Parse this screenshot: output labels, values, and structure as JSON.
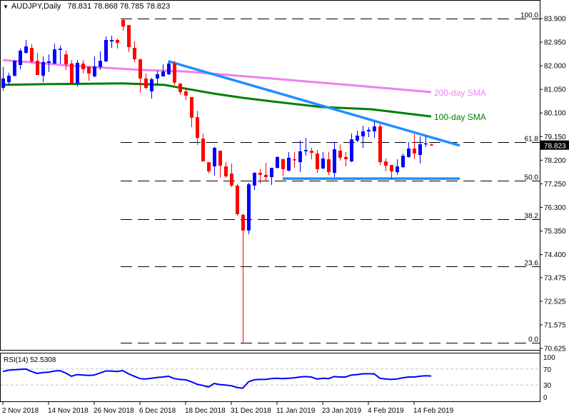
{
  "header": {
    "symbol_timeframe": "AUDJPY,Daily",
    "ohlc_text": "78.831 78.868 78.785 78.823"
  },
  "colors": {
    "bull": "#0000ff",
    "bear": "#ff0000",
    "sma200": "#ee82ee",
    "sma100": "#008000",
    "trendline": "#1e90ff",
    "rsi": "#0000ff"
  },
  "chart_data": {
    "type": "candlestick",
    "title": "AUDJPY,Daily",
    "ylim": [
      70.625,
      83.9
    ],
    "y_ticks": [
      "83.900",
      "82.950",
      "82.000",
      "81.050",
      "80.100",
      "79.150",
      "78.200",
      "77.250",
      "76.300",
      "75.350",
      "74.400",
      "73.475",
      "72.525",
      "71.575",
      "70.625"
    ],
    "current_price": "78.823",
    "x_ticks": [
      {
        "bar": 1,
        "label": "2 Nov 2018"
      },
      {
        "bar": 9,
        "label": "14 Nov 2018"
      },
      {
        "bar": 17,
        "label": "26 Nov 2018"
      },
      {
        "bar": 25,
        "label": "6 Dec 2018"
      },
      {
        "bar": 33,
        "label": "18 Dec 2018"
      },
      {
        "bar": 41,
        "label": "31 Dec 2018"
      },
      {
        "bar": 49,
        "label": "11 Jan 2019"
      },
      {
        "bar": 57,
        "label": "23 Jan 2019"
      },
      {
        "bar": 65,
        "label": "4 Feb 2019"
      },
      {
        "bar": 73,
        "label": "14 Feb 2019"
      }
    ],
    "ohlc": [
      [
        81.11,
        81.95,
        81.0,
        81.49
      ],
      [
        81.34,
        81.72,
        81.23,
        81.6
      ],
      [
        81.6,
        82.23,
        81.57,
        82.2
      ],
      [
        82.03,
        82.69,
        81.86,
        82.61
      ],
      [
        82.52,
        83.04,
        82.49,
        82.78
      ],
      [
        82.72,
        82.87,
        82.12,
        82.18
      ],
      [
        82.2,
        82.52,
        81.63,
        81.63
      ],
      [
        81.6,
        82.38,
        81.34,
        82.15
      ],
      [
        82.12,
        82.46,
        81.75,
        82.18
      ],
      [
        82.09,
        82.89,
        82.06,
        82.66
      ],
      [
        82.64,
        82.81,
        82.09,
        82.69
      ],
      [
        82.46,
        82.61,
        81.83,
        82.06
      ],
      [
        82.09,
        82.23,
        81.29,
        81.29
      ],
      [
        81.29,
        82.23,
        81.17,
        82.12
      ],
      [
        82.09,
        82.23,
        81.69,
        81.86
      ],
      [
        81.95,
        81.97,
        81.4,
        81.69
      ],
      [
        81.57,
        82.38,
        81.54,
        81.97
      ],
      [
        81.95,
        82.58,
        81.83,
        82.2
      ],
      [
        82.18,
        83.18,
        82.15,
        83.04
      ],
      [
        82.98,
        83.21,
        82.72,
        83.04
      ],
      [
        83.04,
        83.1,
        82.69,
        82.92
      ],
      [
        83.84,
        83.87,
        83.41,
        83.58
      ],
      [
        83.64,
        83.64,
        82.55,
        82.75
      ],
      [
        82.72,
        82.98,
        82.15,
        82.26
      ],
      [
        82.26,
        82.29,
        80.91,
        81.49
      ],
      [
        81.49,
        81.69,
        81.06,
        81.11
      ],
      [
        80.97,
        81.52,
        80.68,
        81.46
      ],
      [
        81.49,
        81.8,
        81.23,
        81.66
      ],
      [
        81.57,
        82.06,
        81.57,
        81.77
      ],
      [
        81.66,
        82.2,
        81.63,
        82.09
      ],
      [
        82.09,
        82.2,
        81.23,
        81.32
      ],
      [
        81.29,
        81.29,
        80.83,
        80.94
      ],
      [
        80.97,
        81.11,
        80.62,
        80.8
      ],
      [
        80.74,
        80.74,
        79.53,
        79.91
      ],
      [
        79.93,
        80.19,
        78.81,
        79.1
      ],
      [
        79.07,
        79.27,
        78.15,
        78.15
      ],
      [
        78.12,
        78.12,
        77.66,
        77.75
      ],
      [
        77.95,
        78.73,
        77.58,
        78.7
      ],
      [
        78.58,
        78.58,
        77.49,
        77.98
      ],
      [
        77.95,
        78.12,
        77.49,
        77.55
      ],
      [
        77.66,
        78.07,
        77.12,
        77.18
      ],
      [
        77.18,
        77.23,
        75.97,
        76.03
      ],
      [
        76.0,
        76.06,
        70.85,
        75.37
      ],
      [
        75.37,
        77.29,
        75.22,
        77.23
      ],
      [
        77.18,
        77.72,
        77.0,
        77.69
      ],
      [
        77.69,
        77.84,
        77.26,
        77.61
      ],
      [
        77.61,
        78.1,
        77.38,
        77.52
      ],
      [
        77.52,
        77.89,
        77.2,
        77.89
      ],
      [
        77.89,
        78.35,
        77.87,
        78.33
      ],
      [
        78.24,
        78.27,
        77.55,
        77.84
      ],
      [
        77.78,
        78.53,
        77.75,
        78.3
      ],
      [
        78.24,
        78.53,
        77.9,
        78.21
      ],
      [
        78.12,
        78.99,
        77.72,
        78.56
      ],
      [
        78.56,
        79.1,
        78.38,
        78.61
      ],
      [
        78.58,
        78.7,
        78.24,
        78.5
      ],
      [
        78.47,
        78.61,
        77.69,
        77.84
      ],
      [
        77.87,
        78.53,
        77.84,
        78.27
      ],
      [
        78.24,
        78.53,
        77.61,
        77.72
      ],
      [
        77.69,
        78.93,
        77.52,
        78.64
      ],
      [
        78.58,
        78.84,
        78.18,
        78.3
      ],
      [
        78.33,
        78.53,
        77.95,
        78.24
      ],
      [
        78.15,
        79.27,
        78.12,
        79.04
      ],
      [
        78.99,
        79.39,
        78.93,
        79.19
      ],
      [
        79.16,
        79.59,
        78.7,
        79.36
      ],
      [
        79.36,
        79.53,
        79.13,
        79.42
      ],
      [
        79.36,
        79.76,
        79.1,
        79.56
      ],
      [
        79.56,
        79.68,
        78.01,
        78.12
      ],
      [
        78.15,
        78.27,
        77.75,
        77.98
      ],
      [
        78.01,
        78.01,
        77.43,
        77.75
      ],
      [
        77.72,
        78.24,
        77.61,
        77.95
      ],
      [
        77.92,
        78.47,
        77.89,
        78.38
      ],
      [
        78.33,
        78.93,
        78.3,
        78.67
      ],
      [
        78.67,
        79.25,
        78.24,
        78.47
      ],
      [
        78.41,
        79.16,
        78.07,
        78.84
      ],
      [
        78.84,
        79.16,
        78.73,
        78.88
      ],
      [
        78.831,
        78.868,
        78.785,
        78.823
      ]
    ],
    "sma200": {
      "label": "200-day SMA",
      "anchors": [
        [
          1,
          82.23
        ],
        [
          5.5,
          82.15
        ],
        [
          13,
          82.0
        ],
        [
          25.5,
          81.83
        ],
        [
          33,
          81.77
        ],
        [
          48,
          81.49
        ],
        [
          63,
          81.2
        ],
        [
          76,
          80.94
        ]
      ]
    },
    "sma100": {
      "label": "100-day SMA",
      "anchors": [
        [
          1,
          81.23
        ],
        [
          8,
          81.26
        ],
        [
          21.75,
          81.29
        ],
        [
          29.25,
          81.23
        ],
        [
          33,
          81.08
        ],
        [
          38,
          80.88
        ],
        [
          43,
          80.71
        ],
        [
          48,
          80.57
        ],
        [
          56.75,
          80.34
        ],
        [
          65.5,
          80.25
        ],
        [
          76,
          79.96
        ]
      ]
    },
    "trendlines": [
      {
        "name": "resistance",
        "from": [
          30,
          82.18
        ],
        "to": [
          81,
          78.79
        ]
      },
      {
        "name": "support",
        "from": [
          50,
          77.46
        ],
        "to": [
          81,
          77.46
        ]
      }
    ],
    "fibonacci": {
      "high": 83.9,
      "low": 70.85,
      "start_bar": 22,
      "levels": [
        {
          "ratio": 1.0,
          "label": "100.0"
        },
        {
          "ratio": 0.618,
          "label": "61.8"
        },
        {
          "ratio": 0.5,
          "label": "50.0"
        },
        {
          "ratio": 0.382,
          "label": "38.2"
        },
        {
          "ratio": 0.236,
          "label": "23.6"
        },
        {
          "ratio": 0.0,
          "label": "0.0"
        }
      ]
    },
    "rsi": {
      "label": "RSI(14) 52.5308",
      "levels": [
        {
          "value": 100,
          "label": "100"
        },
        {
          "value": 70,
          "label": "70"
        },
        {
          "value": 30,
          "label": "30"
        },
        {
          "value": 0,
          "label": "0"
        }
      ],
      "values": [
        64,
        67,
        68,
        69,
        70,
        64,
        59,
        61,
        62,
        65,
        66,
        60,
        52,
        56,
        55,
        54,
        55,
        60,
        65,
        65,
        64,
        66,
        58,
        52,
        46,
        45,
        47,
        49,
        50,
        52,
        46,
        44,
        43,
        38,
        32,
        29,
        25,
        34,
        31,
        30,
        28,
        24,
        22,
        38,
        43,
        44,
        44,
        46,
        47,
        46,
        47,
        48,
        50,
        51,
        50,
        45,
        47,
        46,
        51,
        50,
        50,
        55,
        56,
        58,
        58,
        58,
        47,
        45,
        44,
        45,
        48,
        50,
        50,
        52,
        53,
        52.53
      ]
    }
  }
}
